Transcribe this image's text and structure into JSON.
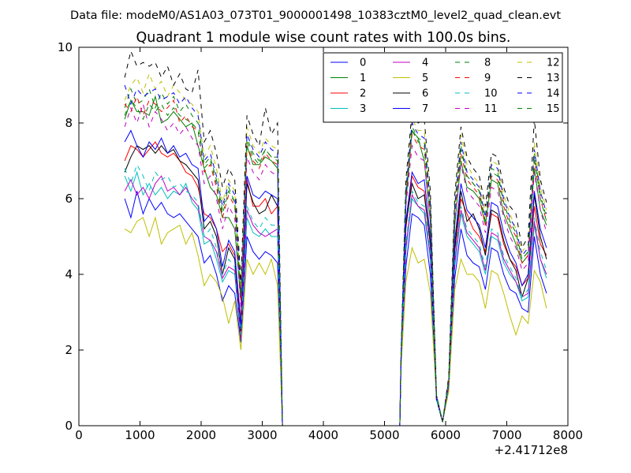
{
  "figure": {
    "suptitle": "Data file: modeM0/AS1A03_073T01_9000001498_10383cztM0_level2_quad_clean.evt"
  },
  "chart_data": {
    "type": "line",
    "title": "Quadrant 1 module wise count rates with 100.0s bins.",
    "xlabel": "",
    "ylabel": "",
    "x_offset_label": "+2.41712e8",
    "xlim": [
      0,
      8000
    ],
    "ylim": [
      0,
      10
    ],
    "xticks": [
      0,
      1000,
      2000,
      3000,
      4000,
      5000,
      6000,
      7000,
      8000
    ],
    "yticks": [
      0,
      2,
      4,
      6,
      8,
      10
    ],
    "grid": false,
    "legend_position": "upper right",
    "legend_columns": 4,
    "x": [
      750,
      850,
      950,
      1050,
      1150,
      1250,
      1350,
      1450,
      1550,
      1650,
      1750,
      1850,
      1950,
      2050,
      2150,
      2250,
      2350,
      2450,
      2550,
      2650,
      2750,
      2850,
      2950,
      3050,
      3150,
      3250,
      3330,
      3350,
      5250,
      5270,
      5350,
      5450,
      5550,
      5650,
      5750,
      5850,
      5950,
      6050,
      6150,
      6250,
      6350,
      6450,
      6550,
      6650,
      6750,
      6850,
      6950,
      7050,
      7150,
      7250,
      7350,
      7450,
      7550,
      7650
    ],
    "series": [
      {
        "name": "0",
        "color": "#0000ff",
        "dash": "solid",
        "values": [
          6.0,
          5.5,
          6.2,
          5.6,
          6.0,
          5.7,
          5.9,
          5.6,
          5.5,
          5.6,
          5.4,
          5.2,
          5.0,
          4.3,
          4.5,
          4.0,
          3.3,
          3.7,
          3.5,
          2.2,
          5.0,
          4.6,
          4.4,
          4.6,
          4.5,
          4.3,
          0.0,
          0.0,
          0.0,
          1.6,
          4.2,
          5.6,
          5.5,
          5.3,
          4.0,
          0.7,
          0.1,
          1.0,
          3.9,
          5.2,
          4.5,
          4.3,
          4.2,
          3.6,
          4.7,
          4.6,
          4.0,
          3.6,
          3.5,
          3.1,
          3.0,
          5.0,
          4.0,
          3.5
        ]
      },
      {
        "name": "1",
        "color": "#008000",
        "dash": "solid",
        "values": [
          8.1,
          8.6,
          8.3,
          8.3,
          8.2,
          8.7,
          8.0,
          8.1,
          8.3,
          8.1,
          7.9,
          8.0,
          7.4,
          6.8,
          6.3,
          6.1,
          5.5,
          5.5,
          5.2,
          3.3,
          7.4,
          6.9,
          6.9,
          7.1,
          7.0,
          6.8,
          0.0,
          0.0,
          0.0,
          1.7,
          5.9,
          7.8,
          7.6,
          7.0,
          5.4,
          0.7,
          0.1,
          1.2,
          5.3,
          7.0,
          6.3,
          6.2,
          6.0,
          5.3,
          6.5,
          6.4,
          5.6,
          5.2,
          4.8,
          4.3,
          4.5,
          6.8,
          5.7,
          5.3
        ]
      },
      {
        "name": "2",
        "color": "#ff0000",
        "dash": "solid",
        "values": [
          7.0,
          7.4,
          7.3,
          7.1,
          7.3,
          7.5,
          7.2,
          7.1,
          7.2,
          7.0,
          6.7,
          6.6,
          6.3,
          5.6,
          5.5,
          5.2,
          4.6,
          4.8,
          4.5,
          2.8,
          6.5,
          5.8,
          5.8,
          6.0,
          5.6,
          5.8,
          0.0,
          0.0,
          0.0,
          1.7,
          5.2,
          6.6,
          6.3,
          6.2,
          4.8,
          0.7,
          0.1,
          1.1,
          4.6,
          6.0,
          5.6,
          5.2,
          5.0,
          4.6,
          5.6,
          5.5,
          4.8,
          4.4,
          4.2,
          3.7,
          3.9,
          5.8,
          4.8,
          4.5
        ]
      },
      {
        "name": "3",
        "color": "#00bfbf",
        "dash": "solid",
        "values": [
          6.6,
          6.2,
          6.7,
          6.1,
          6.4,
          6.1,
          6.3,
          6.0,
          6.2,
          6.1,
          6.4,
          5.9,
          5.7,
          4.8,
          4.9,
          4.4,
          3.8,
          4.1,
          4.0,
          2.3,
          5.5,
          5.1,
          5.0,
          5.2,
          5.0,
          5.0,
          0.0,
          0.0,
          0.0,
          1.6,
          4.6,
          6.0,
          5.8,
          5.6,
          4.4,
          0.7,
          0.1,
          1.0,
          4.2,
          5.6,
          5.0,
          4.8,
          4.6,
          4.0,
          5.0,
          4.9,
          4.3,
          4.0,
          3.8,
          3.3,
          3.4,
          5.3,
          4.4,
          3.9
        ]
      },
      {
        "name": "4",
        "color": "#bf00bf",
        "dash": "solid",
        "values": [
          6.2,
          6.5,
          6.1,
          6.3,
          6.0,
          6.4,
          6.6,
          6.2,
          6.3,
          6.1,
          6.3,
          6.0,
          5.8,
          5.0,
          4.9,
          4.6,
          3.9,
          4.2,
          4.1,
          2.3,
          5.7,
          5.3,
          5.1,
          5.0,
          5.1,
          5.2,
          0.0,
          0.0,
          0.0,
          1.6,
          4.7,
          6.1,
          5.8,
          5.7,
          4.5,
          0.7,
          0.1,
          1.0,
          4.3,
          5.7,
          5.1,
          4.9,
          4.7,
          4.1,
          5.1,
          5.0,
          4.4,
          4.1,
          3.8,
          3.4,
          3.5,
          5.4,
          4.4,
          4.0
        ]
      },
      {
        "name": "5",
        "color": "#bfbf00",
        "dash": "solid",
        "values": [
          5.2,
          5.1,
          5.4,
          5.5,
          5.0,
          5.5,
          4.8,
          5.1,
          5.2,
          5.3,
          4.8,
          5.1,
          4.5,
          3.7,
          4.0,
          3.8,
          3.4,
          2.7,
          3.3,
          2.0,
          4.4,
          4.0,
          4.3,
          4.0,
          4.4,
          3.7,
          0.0,
          0.0,
          0.0,
          1.5,
          3.8,
          4.7,
          4.3,
          4.4,
          3.5,
          0.7,
          0.1,
          0.9,
          3.6,
          4.4,
          4.0,
          4.0,
          3.8,
          3.1,
          4.1,
          4.0,
          3.5,
          2.9,
          2.4,
          2.9,
          2.7,
          4.1,
          3.8,
          3.1
        ]
      },
      {
        "name": "6",
        "color": "#000000",
        "dash": "solid",
        "values": [
          6.7,
          7.1,
          7.4,
          7.3,
          7.4,
          7.2,
          7.4,
          7.2,
          7.3,
          7.0,
          6.9,
          6.7,
          6.5,
          5.2,
          5.4,
          5.0,
          4.0,
          4.7,
          4.4,
          2.5,
          6.4,
          5.9,
          5.6,
          5.7,
          6.1,
          5.8,
          0.0,
          0.0,
          0.0,
          1.7,
          5.3,
          6.4,
          6.0,
          6.1,
          4.8,
          0.7,
          0.1,
          1.1,
          4.7,
          6.2,
          5.4,
          5.6,
          5.2,
          4.5,
          5.7,
          5.6,
          4.9,
          4.4,
          4.1,
          3.4,
          3.9,
          6.1,
          5.0,
          4.4
        ]
      },
      {
        "name": "7",
        "color": "#0000ff",
        "dash": "solid",
        "values": [
          7.5,
          7.8,
          7.4,
          7.1,
          7.5,
          7.3,
          7.6,
          7.2,
          7.4,
          7.1,
          7.2,
          6.9,
          6.8,
          5.4,
          5.6,
          5.2,
          4.2,
          4.9,
          4.6,
          2.6,
          6.6,
          6.1,
          6.0,
          6.2,
          6.1,
          6.0,
          0.0,
          0.0,
          0.0,
          1.7,
          5.4,
          6.7,
          6.4,
          6.5,
          5.0,
          0.7,
          0.1,
          1.1,
          4.9,
          6.4,
          5.7,
          5.5,
          5.3,
          4.7,
          5.9,
          5.8,
          5.1,
          4.6,
          4.3,
          3.7,
          4.0,
          6.2,
          5.2,
          4.7
        ]
      },
      {
        "name": "8",
        "color": "#008000",
        "dash": "dashed",
        "values": [
          8.4,
          8.9,
          8.5,
          8.6,
          8.9,
          8.4,
          8.8,
          8.5,
          8.7,
          8.3,
          8.5,
          8.2,
          8.0,
          6.9,
          7.1,
          6.5,
          5.7,
          6.3,
          5.9,
          3.4,
          7.6,
          7.2,
          7.0,
          7.3,
          7.1,
          7.1,
          0.0,
          0.0,
          0.0,
          1.8,
          6.1,
          7.9,
          7.6,
          7.5,
          5.8,
          0.8,
          0.1,
          1.2,
          5.7,
          7.4,
          6.6,
          6.4,
          6.2,
          5.4,
          6.8,
          6.7,
          5.9,
          5.4,
          5.1,
          4.4,
          4.6,
          7.2,
          6.1,
          5.5
        ]
      },
      {
        "name": "9",
        "color": "#ff0000",
        "dash": "dashed",
        "values": [
          8.5,
          8.3,
          8.7,
          8.2,
          8.6,
          8.5,
          8.3,
          8.4,
          8.6,
          8.0,
          8.2,
          7.9,
          7.8,
          6.7,
          6.9,
          6.3,
          5.5,
          6.1,
          5.8,
          3.3,
          7.4,
          7.0,
          6.8,
          7.2,
          7.0,
          6.9,
          0.0,
          0.0,
          0.0,
          1.8,
          6.0,
          7.7,
          7.4,
          7.3,
          5.6,
          0.8,
          0.1,
          1.2,
          5.6,
          7.2,
          6.5,
          6.3,
          6.1,
          5.3,
          6.6,
          6.5,
          5.8,
          5.3,
          5.0,
          4.3,
          4.5,
          7.0,
          6.0,
          5.4
        ]
      },
      {
        "name": "10",
        "color": "#00bfbf",
        "dash": "dashed",
        "values": [
          6.8,
          6.4,
          6.9,
          6.6,
          6.2,
          6.7,
          6.5,
          6.6,
          6.3,
          6.4,
          6.2,
          6.1,
          5.9,
          5.0,
          5.2,
          4.7,
          4.0,
          4.4,
          4.2,
          2.4,
          5.8,
          5.4,
          5.2,
          5.5,
          5.3,
          5.3,
          0.0,
          0.0,
          0.0,
          1.6,
          4.8,
          6.2,
          5.9,
          5.8,
          4.6,
          0.7,
          0.1,
          1.0,
          4.4,
          5.8,
          5.2,
          5.0,
          4.8,
          4.2,
          5.2,
          5.1,
          4.5,
          4.2,
          3.9,
          3.4,
          3.6,
          5.5,
          4.6,
          4.1
        ]
      },
      {
        "name": "11",
        "color": "#bf00bf",
        "dash": "dashed",
        "values": [
          7.9,
          8.4,
          8.0,
          8.5,
          7.9,
          8.3,
          8.1,
          7.8,
          8.0,
          7.7,
          7.9,
          7.6,
          7.4,
          6.4,
          6.6,
          6.0,
          5.2,
          5.8,
          5.5,
          3.1,
          7.1,
          6.7,
          6.5,
          6.9,
          6.7,
          6.6,
          0.0,
          0.0,
          0.0,
          1.7,
          5.8,
          7.4,
          7.1,
          7.0,
          5.4,
          0.8,
          0.1,
          1.1,
          5.4,
          6.9,
          6.2,
          6.0,
          5.8,
          5.1,
          6.3,
          6.2,
          5.5,
          5.0,
          4.7,
          4.1,
          4.3,
          6.7,
          5.7,
          5.1
        ]
      },
      {
        "name": "12",
        "color": "#bfbf00",
        "dash": "dashed",
        "values": [
          8.6,
          9.0,
          9.2,
          8.8,
          9.3,
          8.9,
          9.1,
          8.7,
          9.0,
          8.8,
          8.6,
          8.5,
          8.3,
          7.1,
          7.4,
          6.8,
          5.9,
          6.5,
          6.2,
          3.6,
          7.9,
          7.4,
          7.2,
          7.6,
          7.4,
          7.3,
          0.0,
          0.0,
          0.0,
          1.8,
          6.3,
          8.1,
          7.8,
          7.8,
          6.0,
          0.8,
          0.1,
          1.2,
          5.9,
          7.7,
          6.9,
          6.6,
          6.4,
          5.6,
          7.0,
          6.9,
          6.1,
          5.6,
          5.2,
          4.6,
          4.8,
          7.5,
          6.3,
          5.7
        ]
      },
      {
        "name": "13",
        "color": "#000000",
        "dash": "dashed",
        "values": [
          9.2,
          9.9,
          9.5,
          9.6,
          9.5,
          9.6,
          9.2,
          9.5,
          9.0,
          9.3,
          8.9,
          8.8,
          9.4,
          7.5,
          7.8,
          7.2,
          6.3,
          6.8,
          6.5,
          3.8,
          8.2,
          7.7,
          7.4,
          8.4,
          7.7,
          8.0,
          0.0,
          0.0,
          0.0,
          1.9,
          6.5,
          8.3,
          8.0,
          8.1,
          6.2,
          0.8,
          0.1,
          1.3,
          6.1,
          7.9,
          7.1,
          6.8,
          6.6,
          5.8,
          7.2,
          7.1,
          6.3,
          5.8,
          5.6,
          4.7,
          5.0,
          8.1,
          6.5,
          5.9
        ]
      },
      {
        "name": "14",
        "color": "#0000ff",
        "dash": "dashed",
        "values": [
          9.0,
          8.5,
          8.9,
          8.7,
          8.8,
          8.9,
          8.6,
          8.7,
          8.8,
          8.5,
          8.7,
          8.4,
          8.2,
          7.0,
          7.2,
          6.6,
          5.8,
          6.4,
          6.1,
          3.5,
          7.7,
          7.3,
          7.1,
          7.5,
          7.3,
          7.2,
          0.0,
          0.0,
          0.0,
          1.8,
          6.2,
          8.0,
          7.7,
          7.6,
          5.9,
          0.8,
          0.1,
          1.2,
          5.8,
          7.5,
          6.7,
          6.5,
          6.3,
          5.5,
          6.9,
          6.8,
          6.0,
          5.5,
          5.2,
          4.5,
          4.7,
          7.3,
          6.2,
          5.6
        ]
      },
      {
        "name": "15",
        "color": "#008000",
        "dash": "dashed",
        "values": [
          8.2,
          8.6,
          8.4,
          8.1,
          8.5,
          8.3,
          8.5,
          8.2,
          8.4,
          8.2,
          8.1,
          8.0,
          7.8,
          6.8,
          7.0,
          6.4,
          5.6,
          6.2,
          5.9,
          3.4,
          7.5,
          7.1,
          6.9,
          7.3,
          7.1,
          7.0,
          0.0,
          0.0,
          0.0,
          1.8,
          6.1,
          7.8,
          7.5,
          7.4,
          5.7,
          0.8,
          0.1,
          1.2,
          5.6,
          7.3,
          6.6,
          6.4,
          6.2,
          5.4,
          6.7,
          6.6,
          5.9,
          5.4,
          5.1,
          4.4,
          4.6,
          7.1,
          6.0,
          5.4
        ]
      }
    ]
  }
}
